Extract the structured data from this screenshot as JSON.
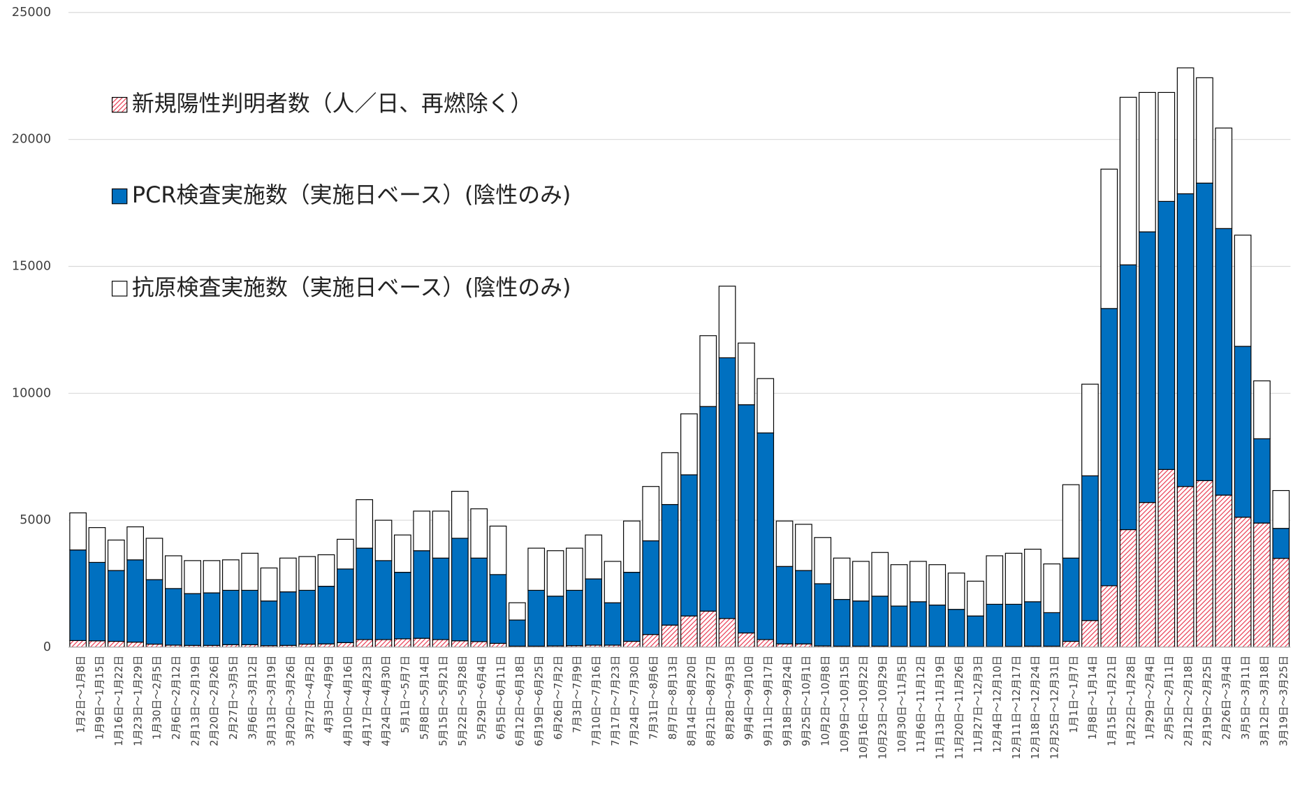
{
  "chart_data": {
    "type": "stacked-bar",
    "categories": [
      "1月2日～1月8日",
      "1月9日～1月15日",
      "1月16日～1月22日",
      "1月23日～1月29日",
      "1月30日～2月5日",
      "2月6日～2月12日",
      "2月13日～2月19日",
      "2月20日～2月26日",
      "2月27日～3月5日",
      "3月6日～3月12日",
      "3月13日～3月19日",
      "3月20日～3月26日",
      "3月27日～4月2日",
      "4月3日～4月9日",
      "4月10日～4月16日",
      "4月17日～4月23日",
      "4月24日～4月30日",
      "5月1日～5月7日",
      "5月8日～5月14日",
      "5月15日～5月21日",
      "5月22日～5月28日",
      "5月29日～6月4日",
      "6月5日～6月11日",
      "6月12日～6月18日",
      "6月19日～6月25日",
      "6月26日～7月2日",
      "7月3日～7月9日",
      "7月10日～7月16日",
      "7月17日～7月23日",
      "7月24日～7月30日",
      "7月31日～8月6日",
      "8月7日～8月13日",
      "8月14日～8月20日",
      "8月21日～8月27日",
      "8月28日～9月3日",
      "9月4日～9月10日",
      "9月11日～9月17日",
      "9月18日～9月24日",
      "9月25日～10月1日",
      "10月2日～10月8日",
      "10月9日～10月15日",
      "10月16日～10月22日",
      "10月23日～10月29日",
      "10月30日～11月5日",
      "11月6日～11月12日",
      "11月13日～11月19日",
      "11月20日～11月26日",
      "11月27日～12月3日",
      "12月4日～12月10日",
      "12月11日～12月17日",
      "12月18日～12月24日",
      "12月25日～12月31日",
      "1月1日～1月7日",
      "1月8日～1月14日",
      "1月15日～1月21日",
      "1月22日～1月28日",
      "1月29日～2月4日",
      "2月5日～2月11日",
      "2月12日～2月18日",
      "2月19日～2月25日",
      "2月26日～3月4日",
      "3月5日～3月11日",
      "3月12日～3月18日",
      "3月19日～3月25日"
    ],
    "series": [
      {
        "name": "新規陽性判明者数（人／日、再燃除く）",
        "color": "#e8384f",
        "pattern": "hatch",
        "values": [
          260,
          250,
          230,
          200,
          120,
          80,
          70,
          70,
          100,
          100,
          60,
          70,
          120,
          130,
          180,
          300,
          300,
          330,
          350,
          300,
          250,
          220,
          150,
          40,
          40,
          50,
          60,
          80,
          80,
          230,
          500,
          870,
          1230,
          1420,
          1130,
          560,
          300,
          130,
          130,
          50,
          40,
          40,
          40,
          30,
          30,
          30,
          20,
          20,
          20,
          30,
          40,
          40,
          230,
          1050,
          2420,
          4630,
          5700,
          7000,
          6330,
          6560,
          5990,
          5120,
          4890,
          3500
        ]
      },
      {
        "name": "PCR検査実施数（実施日ベース）(陰性のみ)",
        "color": "#0070c0",
        "values": [
          3570,
          3090,
          2790,
          3240,
          2540,
          2230,
          2040,
          2070,
          2140,
          2140,
          1760,
          2110,
          2120,
          2270,
          2900,
          3600,
          3110,
          2620,
          3450,
          3210,
          4040,
          3290,
          2710,
          1030,
          2200,
          1960,
          2180,
          2610,
          1670,
          2720,
          3690,
          4750,
          5560,
          8060,
          10270,
          8990,
          8140,
          3050,
          2890,
          2450,
          1840,
          1780,
          1970,
          1590,
          1760,
          1630,
          1470,
          1210,
          1670,
          1660,
          1750,
          1320,
          3280,
          5700,
          10920,
          10430,
          10660,
          10560,
          11530,
          11720,
          10500,
          6730,
          3320,
          1180
        ]
      },
      {
        "name": "抗原検査実施数（実施日ベース）(陰性のみ)",
        "color": "#ffffff",
        "values": [
          1460,
          1370,
          1200,
          1300,
          1630,
          1290,
          1300,
          1270,
          1200,
          1460,
          1300,
          1330,
          1330,
          1240,
          1170,
          1910,
          1590,
          1470,
          1560,
          1850,
          1850,
          1940,
          1910,
          680,
          1660,
          1790,
          1660,
          1730,
          1630,
          2020,
          2140,
          2040,
          2400,
          2790,
          2820,
          2430,
          2140,
          1790,
          1820,
          1820,
          1630,
          1560,
          1720,
          1630,
          1590,
          1590,
          1430,
          1370,
          1910,
          2010,
          2070,
          1920,
          2890,
          3610,
          5490,
          6600,
          5490,
          4290,
          4960,
          4150,
          3960,
          4380,
          2280,
          1490
        ]
      }
    ],
    "ylim": [
      0,
      25000
    ],
    "yticks": [
      0,
      5000,
      10000,
      15000,
      20000,
      25000
    ],
    "grid": true,
    "legend": "top-left"
  }
}
